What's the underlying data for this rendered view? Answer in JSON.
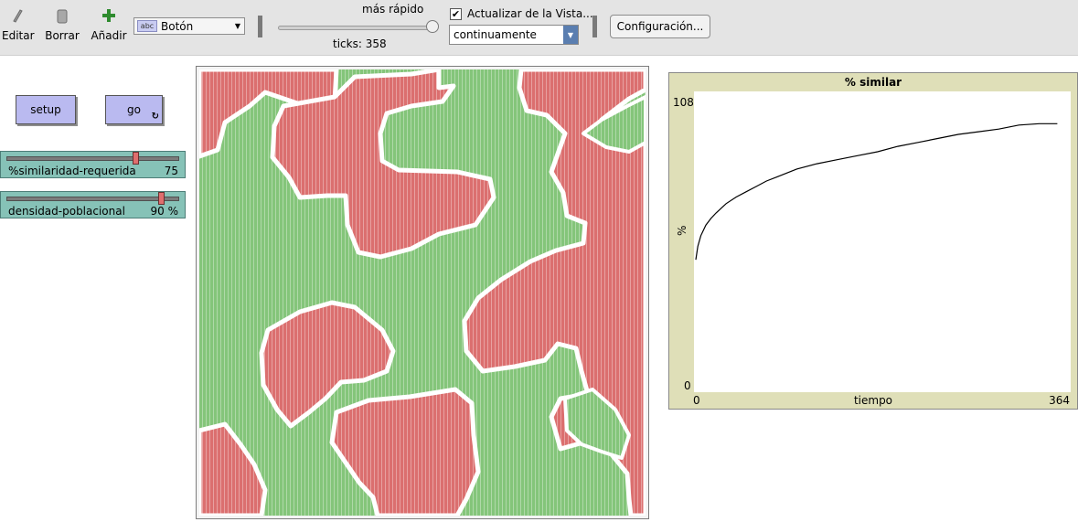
{
  "toolbar": {
    "edit_label": "Editar",
    "delete_label": "Borrar",
    "add_label": "Añadir",
    "widget_type": "Botón",
    "widget_type_icon_text": "abc",
    "speed_label": "más rápido",
    "speed_level": 0.97,
    "ticks_label": "ticks: 358",
    "update_view_checked": true,
    "update_view_label": "Actualizar de la Vista...",
    "update_mode": "continuamente",
    "settings_label": "Configuración..."
  },
  "interface": {
    "setup_label": "setup",
    "go_label": "go",
    "sliders": [
      {
        "name": "%similaridad-requerida",
        "value": "75",
        "level": 0.75
      },
      {
        "name": "densidad-poblacional",
        "value": "90 %",
        "level": 0.9
      }
    ]
  },
  "world": {
    "colors": {
      "red_agent": "#db6f6f",
      "green_agent": "#84c57a",
      "empty": "#f4f4f4"
    }
  },
  "plot": {
    "title": "% similar",
    "y_max": "108",
    "y_min": "0",
    "x_min": "0",
    "x_max": "364",
    "x_label": "tiempo",
    "y_label": "%"
  },
  "chart_data": {
    "type": "line",
    "title": "% similar",
    "xlabel": "tiempo",
    "ylabel": "%",
    "xlim": [
      0,
      364
    ],
    "ylim": [
      0,
      108
    ],
    "series": [
      {
        "x": [
          0,
          2,
          5,
          10,
          15,
          20,
          30,
          40,
          50,
          60,
          70,
          80,
          90,
          100,
          120,
          140,
          160,
          180,
          200,
          220,
          240,
          260,
          280,
          300,
          320,
          340,
          358
        ],
        "y": [
          49,
          54,
          58,
          62,
          64.5,
          66.5,
          70,
          72.5,
          74.5,
          76.5,
          78.5,
          80,
          81.5,
          83,
          85,
          86.5,
          88,
          89.5,
          91.5,
          93,
          94.5,
          96,
          97,
          98,
          99.5,
          100,
          100
        ]
      }
    ]
  }
}
